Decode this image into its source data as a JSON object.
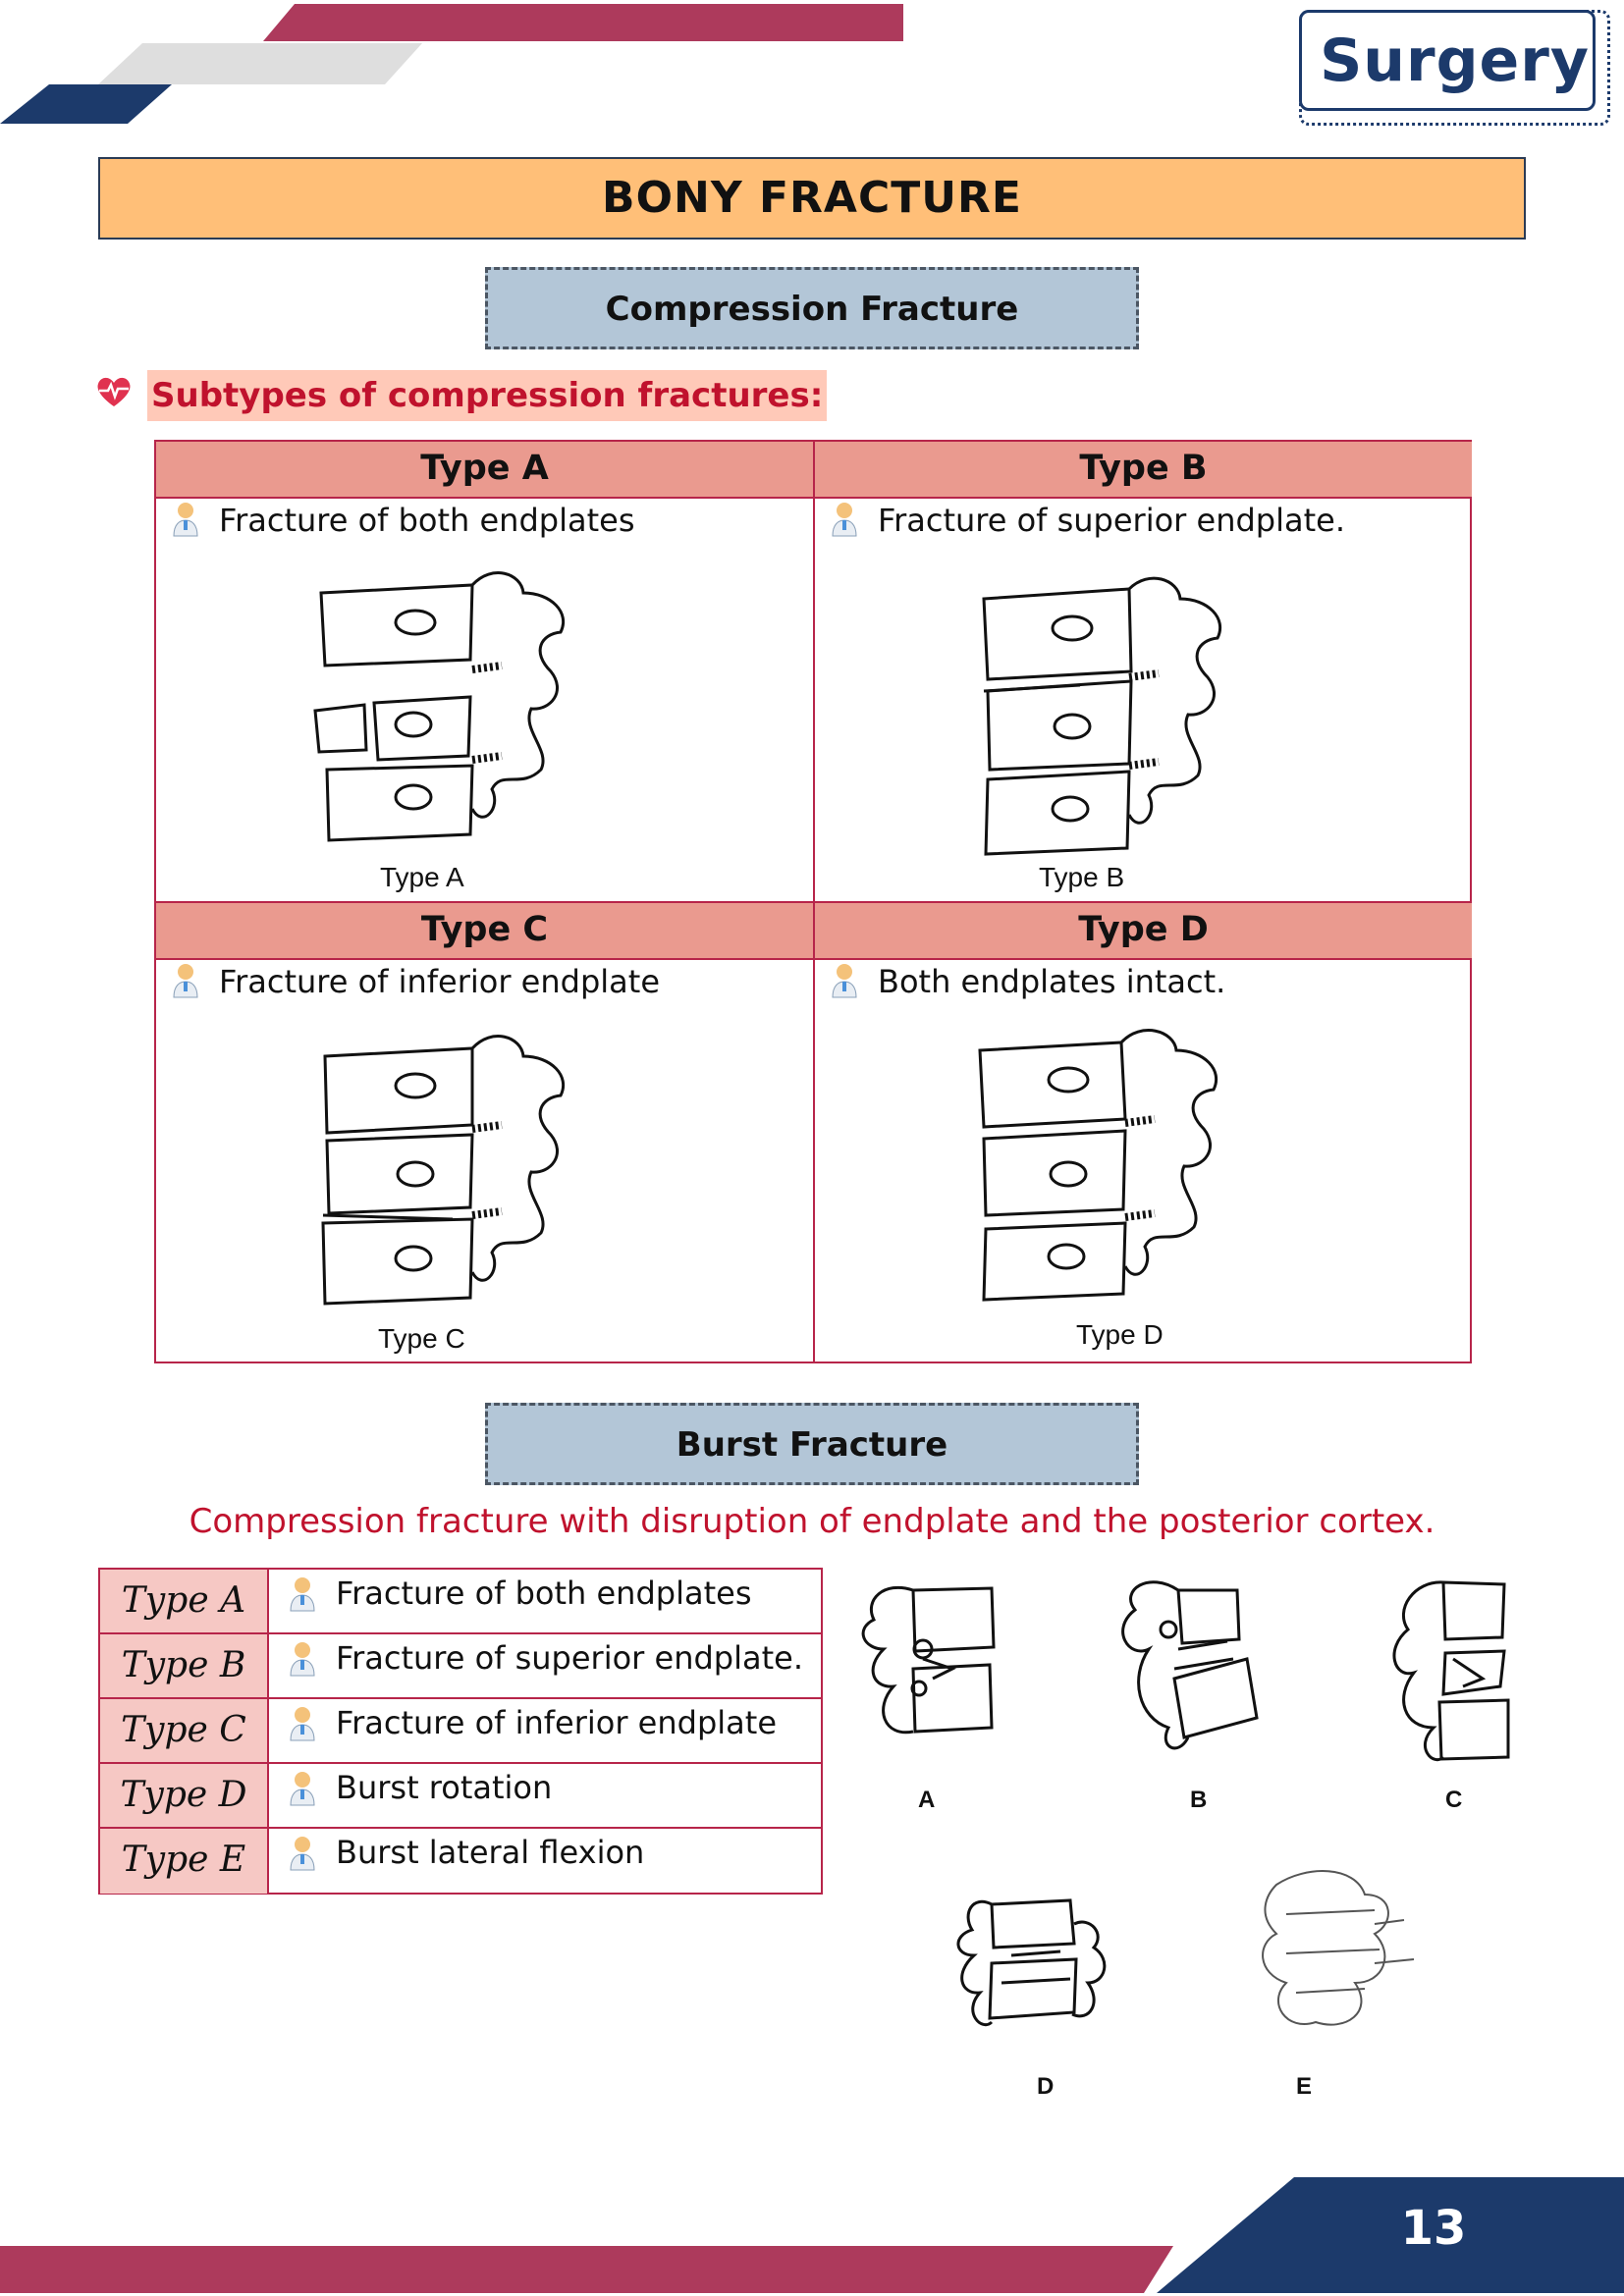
{
  "header": {
    "subject": "Surgery",
    "title": "BONY FRACTURE"
  },
  "compression": {
    "section_title": "Compression Fracture",
    "subtitle": "Subtypes of compression fractures:",
    "cells": [
      {
        "heading": "Type A",
        "text": "Fracture of both endplates",
        "figure_label": "Type A"
      },
      {
        "heading": "Type B",
        "text": "Fracture of superior endplate.",
        "figure_label": "Type B"
      },
      {
        "heading": "Type C",
        "text": "Fracture of inferior endplate",
        "figure_label": "Type C"
      },
      {
        "heading": "Type D",
        "text": "Both endplates intact.",
        "figure_label": "Type D"
      }
    ]
  },
  "burst": {
    "section_title": "Burst Fracture",
    "note": "Compression fracture with disruption of endplate and the posterior cortex.",
    "rows": [
      {
        "type": "Type A",
        "text": "Fracture of both endplates"
      },
      {
        "type": "Type B",
        "text": "Fracture of superior endplate."
      },
      {
        "type": "Type C",
        "text": "Fracture of inferior endplate"
      },
      {
        "type": "Type D",
        "text": "Burst rotation"
      },
      {
        "type": "Type E",
        "text": "Burst lateral flexion"
      }
    ],
    "figure_labels": [
      "A",
      "B",
      "C",
      "D",
      "E"
    ]
  },
  "footer": {
    "page_number": "13"
  },
  "colors": {
    "brand_navy": "#1c3a6b",
    "brand_crimson": "#ad3a5c",
    "title_bg": "#ffbf78",
    "section_bg": "#b3c6d7",
    "table_head": "#ea9a8f",
    "accent_red": "#c0122d"
  }
}
